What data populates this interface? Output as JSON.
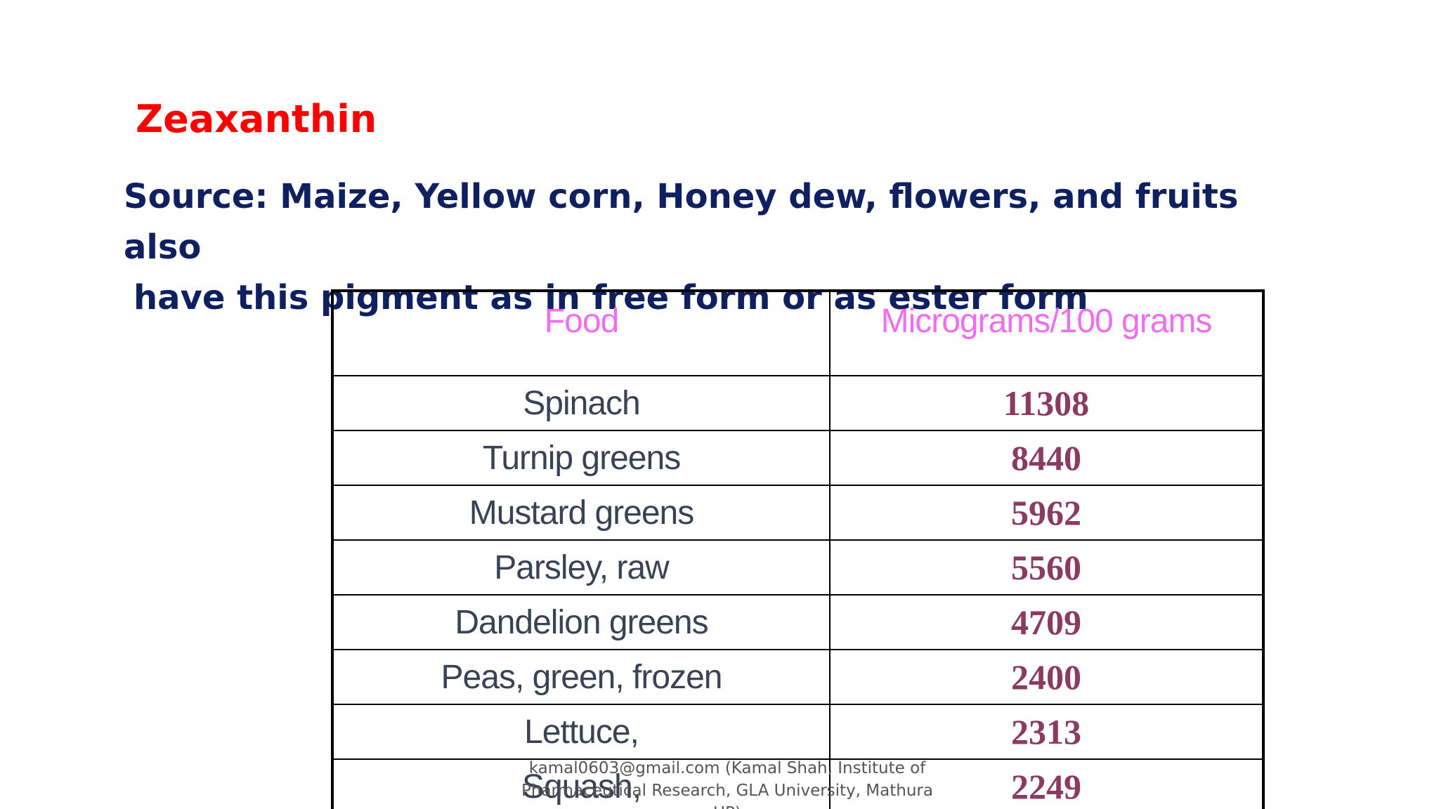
{
  "slide": {
    "title": "Zeaxanthin",
    "source_line1": "Source: Maize, Yellow corn, Honey dew, flowers, and fruits also",
    "source_line2": "have this pigment as in free form or as ester form"
  },
  "table": {
    "headers": [
      "Food",
      "Micrograms/100 grams"
    ],
    "rows": [
      {
        "food": "Spinach",
        "value": "11308"
      },
      {
        "food": "Turnip greens",
        "value": "8440"
      },
      {
        "food": "Mustard greens",
        "value": "5962"
      },
      {
        "food": "Parsley, raw",
        "value": "5560"
      },
      {
        "food": "Dandelion greens",
        "value": "4709"
      },
      {
        "food": "Peas, green, frozen",
        "value": "2400"
      },
      {
        "food": "Lettuce,",
        "value": "2313"
      },
      {
        "food": "Squash,",
        "value": "2249"
      }
    ]
  },
  "footer": {
    "line1": "kamal0603@gmail.com (Kamal Shah, Institute of",
    "line2": "Pharmaceutical Research, GLA University, Mathura UP)"
  },
  "colors": {
    "title": "#ff0000",
    "source": "#0f2060",
    "header_text": "#f06cf0",
    "food_text": "#3a4256",
    "value_text": "#8b3a62"
  }
}
